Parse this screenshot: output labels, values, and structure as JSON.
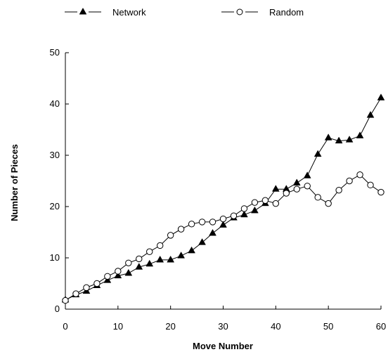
{
  "chart_data": {
    "type": "line",
    "title": "",
    "xlabel": "Move Number",
    "ylabel": "Number of Pieces",
    "xlim": [
      0,
      60
    ],
    "ylim": [
      0,
      50
    ],
    "x_ticks": [
      0,
      10,
      20,
      30,
      40,
      50,
      60
    ],
    "y_ticks": [
      0,
      10,
      20,
      30,
      40,
      50
    ],
    "grid": false,
    "legend_position": "top",
    "series": [
      {
        "name": "Network",
        "marker": "filled-triangle",
        "color": "#000000",
        "x": [
          0,
          2,
          4,
          6,
          8,
          10,
          12,
          14,
          16,
          18,
          20,
          22,
          24,
          26,
          28,
          30,
          32,
          34,
          36,
          38,
          40,
          42,
          44,
          46,
          48,
          50,
          52,
          54,
          56,
          58,
          60
        ],
        "y": [
          1.8,
          2.8,
          3.5,
          4.6,
          5.6,
          6.5,
          7.0,
          8.2,
          8.8,
          9.6,
          9.6,
          10.4,
          11.4,
          13.0,
          14.8,
          16.4,
          17.8,
          18.4,
          19.2,
          20.6,
          23.4,
          23.4,
          24.6,
          26.0,
          30.2,
          33.4,
          32.8,
          33.0,
          33.8,
          37.8,
          41.2
        ]
      },
      {
        "name": "Random",
        "marker": "open-circle",
        "color": "#000000",
        "x": [
          0,
          2,
          4,
          6,
          8,
          10,
          12,
          14,
          16,
          18,
          20,
          22,
          24,
          26,
          28,
          30,
          32,
          34,
          36,
          38,
          40,
          42,
          44,
          46,
          48,
          50,
          52,
          54,
          56,
          58,
          60
        ],
        "y": [
          1.7,
          3.0,
          4.2,
          5.0,
          6.4,
          7.4,
          9.0,
          9.8,
          11.2,
          12.4,
          14.4,
          15.6,
          16.6,
          17.0,
          17.0,
          17.6,
          18.2,
          19.6,
          20.8,
          21.2,
          20.6,
          22.6,
          23.4,
          24.0,
          21.8,
          20.6,
          23.2,
          25.0,
          26.2,
          24.2,
          22.8
        ]
      }
    ]
  }
}
